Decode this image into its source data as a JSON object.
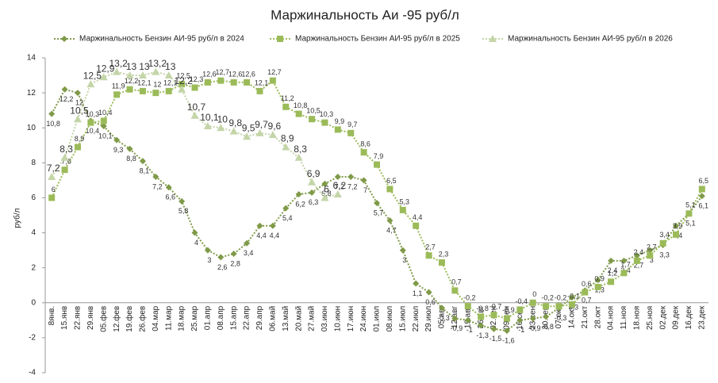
{
  "chart_data": {
    "type": "line",
    "title": "Маржинальность Аи -95  руб/л",
    "y_label": "руб/л",
    "categories": [
      "8янв.",
      "15.янв",
      "22.янв",
      "29.янв",
      "05.фев",
      "12.фев",
      "19.фев",
      "26.фев",
      "04.мар",
      "11.мар",
      "18.мар",
      "25.мар",
      "01.апр",
      "08.апр",
      "15.апр",
      "22.апр",
      "29.апр",
      "06.май",
      "13.май",
      "20.май",
      "27.май",
      "03.июн",
      "10.июн",
      "17.июн",
      "24.июн",
      "01.июл",
      "08.июл",
      "15.июл",
      "22.июл",
      "29.июл",
      "05.авг",
      "12.авг",
      "19.авг",
      "26.авг",
      "02.сен",
      "09.сен",
      "16.сен",
      "23.сен",
      "30.сен",
      "07.окт",
      "14.окт",
      "21.окт",
      "28.окт",
      "04.ноя",
      "11.ноя",
      "18.ноя",
      "25.ноя",
      "02.дек",
      "09.дек",
      "16.дек",
      "23.дек"
    ],
    "ylim": [
      -4,
      14
    ],
    "yticks": [
      -4,
      -2,
      0,
      2,
      4,
      6,
      8,
      10,
      12,
      14
    ],
    "grid": false,
    "legend": "top",
    "series": [
      {
        "name": "Маржинальность Бензин АИ-95 руб/л в 2024",
        "color": "#7f9a48",
        "marker": "diamond",
        "values": [
          10.8,
          12.2,
          12,
          10.4,
          10.1,
          9.3,
          8.8,
          8.1,
          7.2,
          6.6,
          5.8,
          4,
          3,
          2.6,
          2.8,
          3.4,
          4.4,
          4.4,
          5.4,
          6.2,
          6.3,
          6.8,
          7.2,
          7.2,
          7,
          5.7,
          4.7,
          3,
          1.1,
          0.6,
          -0.3,
          -0.9,
          -1,
          -1.3,
          -1.5,
          -1.6,
          -1,
          -0.9,
          -0.8,
          -0.3,
          0.3,
          0.7,
          1.3,
          2.4,
          2.4,
          2.7,
          3,
          3.3,
          4.4,
          5.1,
          6.1
        ],
        "value_labels": [
          "10,8",
          "12,2",
          "12",
          "10,4",
          "10,1",
          "9,3",
          "8,8",
          "8,1",
          "7,2",
          "6,6",
          "5,8",
          "4",
          "3",
          "2,6",
          "2,8",
          "3,4",
          "4,4",
          "4,4",
          "5,4",
          "6,2",
          "6,3",
          "6,8",
          "7,2",
          "7,2",
          "7",
          "5,7",
          "4,7",
          "3",
          "1,1",
          "0,6",
          "-0,3",
          "-0,9",
          "-1",
          "-1,3",
          "-1,5",
          "-1,6",
          "-1",
          "-0,9",
          "-0,8",
          "-0,3",
          "0,3",
          "0,7",
          "1,3",
          "2,4",
          "2,4",
          "2,7",
          "3",
          "3,3",
          "4,4",
          "5,1",
          "6,1"
        ]
      },
      {
        "name": "Маржинальность Бензин АИ-95 руб/л в 2025",
        "color": "#9bbb59",
        "marker": "square",
        "values": [
          6,
          7.6,
          8.9,
          10.3,
          10.4,
          11.9,
          12.2,
          12.1,
          12,
          12.1,
          12.5,
          12.3,
          12.6,
          12.7,
          12.6,
          12.6,
          12.1,
          12.7,
          11.2,
          10.8,
          10.5,
          10.3,
          9.9,
          9.7,
          8.6,
          7.9,
          6.5,
          5.3,
          4.4,
          2.7,
          2.3,
          0.7,
          -0.2,
          -0.8,
          -0.7,
          -0.9,
          -0.4,
          0,
          -0.2,
          -0.2,
          -0.1,
          0.6,
          0.9,
          1.2,
          1.7,
          2.4,
          2.7,
          3.4,
          3.9,
          5.1,
          6.5
        ],
        "value_labels": [
          "6",
          "7,6",
          "8,9",
          "10,3",
          "10,4",
          "11,9",
          "12,2",
          "12,1",
          "12",
          "12,1",
          "12,5",
          "12,3",
          "12,6",
          "12,7",
          "12,6",
          "12,6",
          "12,1",
          "12,7",
          "11,2",
          "10,8",
          "10,5",
          "10,3",
          "9,9",
          "9,7",
          "8,6",
          "7,9",
          "6,5",
          "5,3",
          "4,4",
          "2,7",
          "2,3",
          "0,7",
          "-0,2",
          "-0,8",
          "-0,7",
          "-0,9",
          "-0,4",
          "0",
          "-0,2",
          "-0,2",
          "-0,1",
          "0,6",
          "0,9",
          "1,2",
          "1,7",
          "2,4",
          "2,7",
          "3,4",
          "3,9",
          "5,1",
          "6,5"
        ]
      },
      {
        "name": "Маржинальность Бензин АИ-95 руб/л в 2026",
        "color": "#c4d5a8",
        "marker": "triangle",
        "values": [
          7.2,
          8.3,
          10.5,
          12.5,
          12.9,
          13.2,
          13,
          13,
          13.2,
          13,
          12.2,
          10.7,
          10.1,
          10,
          9.8,
          9.5,
          9.7,
          9.6,
          8.9,
          8.3,
          6.9,
          6,
          6.2,
          null,
          null,
          null,
          null,
          null,
          null,
          null,
          null,
          null,
          null,
          null,
          null,
          null,
          null,
          null,
          null,
          null,
          null,
          null,
          null,
          null,
          null,
          null,
          null,
          null,
          null,
          null,
          null
        ],
        "value_labels": [
          "7,2",
          "8,3",
          "10,5",
          "12,5",
          "12,9",
          "13,2",
          "13",
          "13",
          "13,2",
          "13",
          "12,2",
          "10,7",
          "10,1",
          "10",
          "9,8",
          "9,5",
          "9,7",
          "9,6",
          "8,9",
          "8,3",
          "6,9",
          "6",
          "6,2",
          null,
          null,
          null,
          null,
          null,
          null,
          null,
          null,
          null,
          null,
          null,
          null,
          null,
          null,
          null,
          null,
          null,
          null,
          null,
          null,
          null,
          null,
          null,
          null,
          null,
          null,
          null,
          null
        ]
      }
    ]
  }
}
